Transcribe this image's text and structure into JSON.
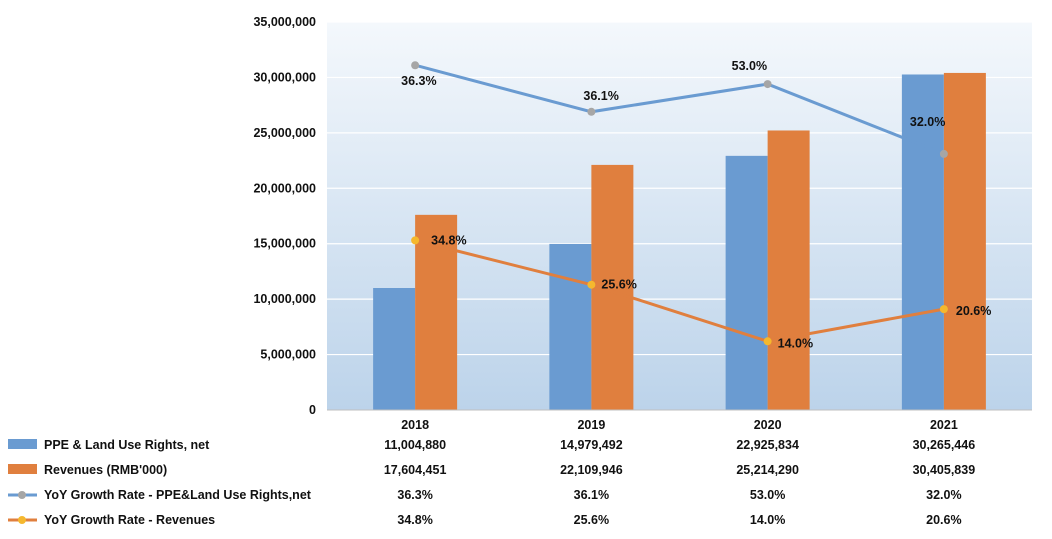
{
  "chart_data": {
    "type": "bar",
    "categories": [
      "2018",
      "2019",
      "2020",
      "2021"
    ],
    "ylim": [
      0,
      35000000
    ],
    "yticks": [
      0,
      5000000,
      10000000,
      15000000,
      20000000,
      25000000,
      30000000,
      35000000
    ],
    "ytick_labels": [
      "0",
      "5,000,000",
      "10,000,000",
      "15,000,000",
      "20,000,000",
      "25,000,000",
      "30,000,000",
      "35,000,000"
    ],
    "series": [
      {
        "name": "PPE & Land Use Rights, net",
        "kind": "bar",
        "color": "#6a9bd1",
        "values": [
          11004880,
          14979492,
          22925834,
          30265446
        ],
        "labels": [
          "11,004,880",
          "14,979,492",
          "22,925,834",
          "30,265,446"
        ]
      },
      {
        "name": "Revenues (RMB'000)",
        "kind": "bar",
        "color": "#e07f3e",
        "values": [
          17604451,
          22109946,
          25214290,
          30405839
        ],
        "labels": [
          "17,604,451",
          "22,109,946",
          "25,214,290",
          "30,405,839"
        ]
      },
      {
        "name": "YoY Growth Rate - PPE&Land Use Rights,net",
        "kind": "line",
        "color": "#6a9bd1",
        "marker_color": "#a6a6a6",
        "values": [
          36.3,
          36.1,
          53.0,
          32.0
        ],
        "labels": [
          "36.3%",
          "36.1%",
          "53.0%",
          "32.0%"
        ],
        "plot_y": [
          31100000,
          26900000,
          29400000,
          23100000
        ]
      },
      {
        "name": "YoY Growth Rate - Revenues",
        "kind": "line",
        "color": "#e07f3e",
        "marker_color": "#f5b82e",
        "values": [
          34.8,
          25.6,
          14.0,
          20.6
        ],
        "labels": [
          "34.8%",
          "25.6%",
          "14.0%",
          "20.6%"
        ],
        "plot_y": [
          15300000,
          11300000,
          6200000,
          9100000
        ]
      }
    ],
    "legend": "data-table-below"
  }
}
